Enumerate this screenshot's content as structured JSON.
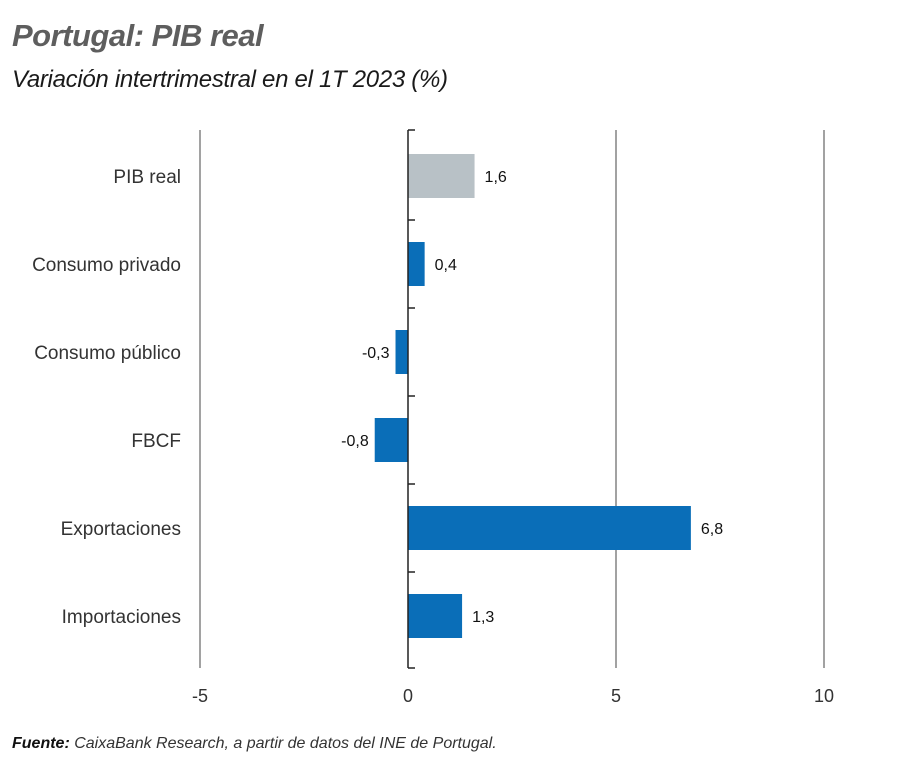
{
  "header": {
    "title": "Portugal: PIB real",
    "subtitle": "Variación intertrimestral en el 1T 2023 (%)"
  },
  "footer": {
    "source_label": "Fuente:",
    "source_text": " CaixaBank Research, a partir de datos del INE de Portugal."
  },
  "chart_data": {
    "type": "bar",
    "orientation": "horizontal",
    "title": "Portugal: PIB real",
    "subtitle": "Variación intertrimestral en el 1T 2023 (%)",
    "xlabel": "",
    "ylabel": "",
    "categories": [
      "PIB real",
      "Consumo privado",
      "Consumo público",
      "FBCF",
      "Exportaciones",
      "Importaciones"
    ],
    "values": [
      1.6,
      0.4,
      -0.3,
      -0.8,
      6.8,
      1.3
    ],
    "data_labels": [
      "1,6",
      "0,4",
      "-0,3",
      "-0,8",
      "6,8",
      "1,3"
    ],
    "bar_colors": [
      "#b8c1c6",
      "#0a6eb8",
      "#0a6eb8",
      "#0a6eb8",
      "#0a6eb8",
      "#0a6eb8"
    ],
    "xlim": [
      -5,
      10
    ],
    "xticks": [
      -5,
      0,
      5,
      10
    ],
    "xtick_labels": [
      "-5",
      "0",
      "5",
      "10"
    ],
    "grid": "vertical",
    "legend": "none",
    "source": "CaixaBank Research, a partir de datos del INE de Portugal."
  }
}
